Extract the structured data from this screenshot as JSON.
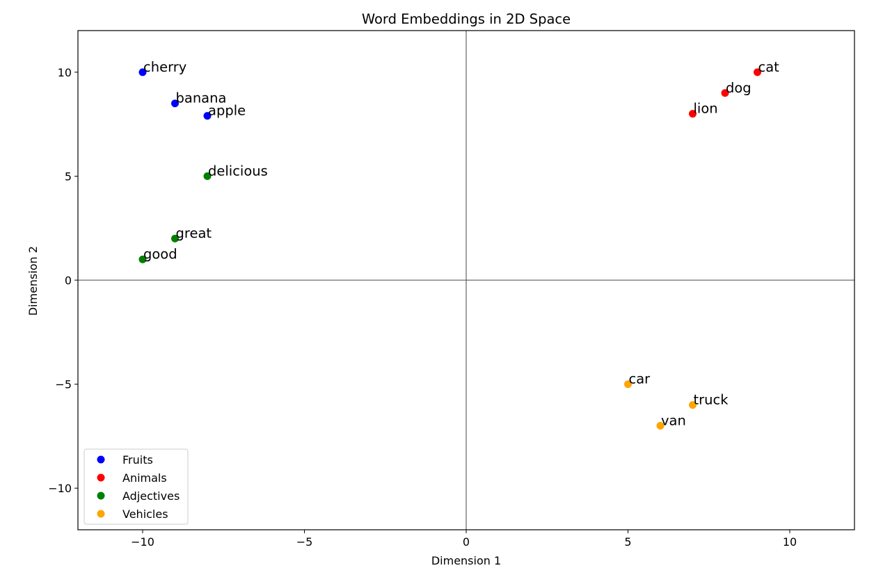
{
  "chart_data": {
    "type": "scatter",
    "title": "Word Embeddings in 2D Space",
    "xlabel": "Dimension 1",
    "ylabel": "Dimension 2",
    "xlim": [
      -12,
      12
    ],
    "ylim": [
      -12,
      12
    ],
    "xticks": [
      -10,
      -5,
      0,
      5,
      10
    ],
    "yticks": [
      -10,
      -5,
      0,
      5,
      10
    ],
    "xtick_labels": [
      "−10",
      "−5",
      "0",
      "5",
      "10"
    ],
    "ytick_labels": [
      "−10",
      "−5",
      "0",
      "5",
      "10"
    ],
    "grid": false,
    "reference_lines": {
      "x": 0,
      "y": 0
    },
    "legend_position": "lower-left",
    "series": [
      {
        "name": "Fruits",
        "color": "#0000ff",
        "points": [
          {
            "label": "apple",
            "x": -8,
            "y": 7.9
          },
          {
            "label": "banana",
            "x": -9,
            "y": 8.5
          },
          {
            "label": "cherry",
            "x": -10,
            "y": 10
          }
        ]
      },
      {
        "name": "Animals",
        "color": "#ff0000",
        "points": [
          {
            "label": "dog",
            "x": 8,
            "y": 9
          },
          {
            "label": "cat",
            "x": 9,
            "y": 10
          },
          {
            "label": "lion",
            "x": 7,
            "y": 8
          }
        ]
      },
      {
        "name": "Adjectives",
        "color": "#008000",
        "points": [
          {
            "label": "good",
            "x": -10,
            "y": 1
          },
          {
            "label": "great",
            "x": -9,
            "y": 2
          },
          {
            "label": "delicious",
            "x": -8,
            "y": 5
          }
        ]
      },
      {
        "name": "Vehicles",
        "color": "#ffa500",
        "points": [
          {
            "label": "car",
            "x": 5,
            "y": -5
          },
          {
            "label": "truck",
            "x": 7,
            "y": -6
          },
          {
            "label": "van",
            "x": 6,
            "y": -7
          }
        ]
      }
    ]
  }
}
